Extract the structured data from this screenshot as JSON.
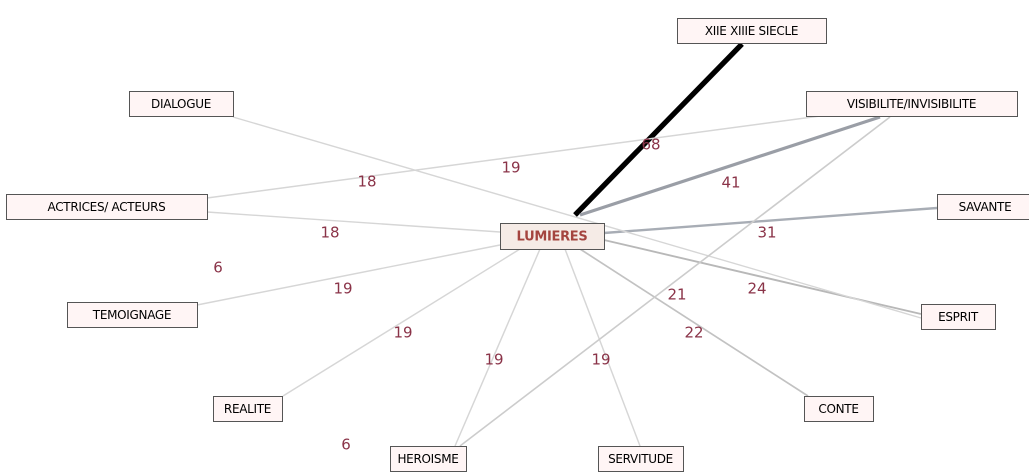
{
  "nodes": [
    {
      "label": "LUMIERES"
    },
    {
      "label": "XIIE XIIIE SIECLE"
    },
    {
      "label": "DIALOGUE"
    },
    {
      "label": "VISIBILITE/INVISIBILITE"
    },
    {
      "label": "ACTRICES/ ACTEURS"
    },
    {
      "label": "SAVANTE"
    },
    {
      "label": "TEMOIGNAGE"
    },
    {
      "label": "ESPRIT"
    },
    {
      "label": "REALITE"
    },
    {
      "label": "CONTE"
    },
    {
      "label": "HEROISME"
    },
    {
      "label": "SERVITUDE"
    }
  ],
  "edges": [
    {
      "weight": 68,
      "color": "#000000"
    },
    {
      "weight": 41,
      "color": "#9a9ea6"
    },
    {
      "weight": 31,
      "color": "#a8adb5"
    },
    {
      "weight": 24,
      "color": "#b8b8b8"
    },
    {
      "weight": 22,
      "color": "#c2c2c2"
    },
    {
      "weight": 19,
      "color": "#d6d6d6"
    },
    {
      "weight": 19,
      "color": "#d6d6d6"
    },
    {
      "weight": 19,
      "color": "#d6d6d6"
    },
    {
      "weight": 19,
      "color": "#d6d6d6"
    },
    {
      "weight": 18,
      "color": "#d6d6d6"
    },
    {
      "weight": 18,
      "color": "#d6d6d6"
    },
    {
      "weight": 19,
      "color": "#d6d6d6"
    },
    {
      "weight": 21,
      "color": "#cccccc"
    }
  ],
  "loose_labels": [
    6,
    6
  ]
}
